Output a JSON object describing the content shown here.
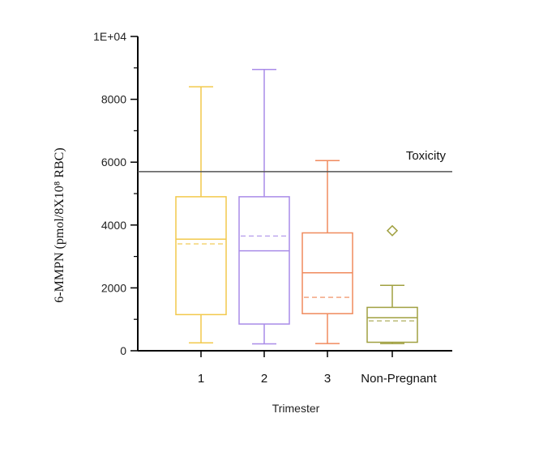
{
  "chart_data": {
    "type": "box",
    "xlabel": "Trimester",
    "ylabel": "6-MMPN (pmol/8X10⁸ RBC)",
    "ylim": [
      0,
      10000
    ],
    "yticks": [
      {
        "value": 0,
        "label": "0"
      },
      {
        "value": 2000,
        "label": "2000"
      },
      {
        "value": 4000,
        "label": "4000"
      },
      {
        "value": 6000,
        "label": "6000"
      },
      {
        "value": 8000,
        "label": "8000"
      },
      {
        "value": 10000,
        "label": "1E+04"
      }
    ],
    "reference_line": {
      "label": "Toxicity",
      "value": 5700,
      "color": "#555555"
    },
    "categories": [
      "1",
      "2",
      "3",
      "Non-Pregnant"
    ],
    "boxes": [
      {
        "category": "1",
        "color": "#F2C94C",
        "min": 250,
        "q1": 1150,
        "median": 3550,
        "mean": 3400,
        "q3": 4900,
        "max": 8400,
        "outliers": []
      },
      {
        "category": "2",
        "color": "#A98BE8",
        "min": 220,
        "q1": 850,
        "median": 3180,
        "mean": 3650,
        "q3": 4900,
        "max": 8950,
        "outliers": []
      },
      {
        "category": "3",
        "color": "#F08A5D",
        "min": 230,
        "q1": 1180,
        "median": 2480,
        "mean": 1700,
        "q3": 3750,
        "max": 6050,
        "outliers": []
      },
      {
        "category": "Non-Pregnant",
        "color": "#A0A040",
        "min": 230,
        "q1": 270,
        "median": 1050,
        "mean": 950,
        "q3": 1380,
        "max": 2080,
        "outliers": [
          3820
        ]
      }
    ]
  }
}
